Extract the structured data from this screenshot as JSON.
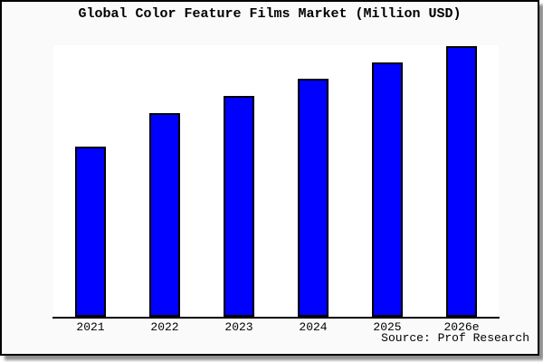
{
  "chart": {
    "title": "Global Color Feature Films Market (Million USD)",
    "source": "Source: Prof Research"
  },
  "chart_data": {
    "type": "bar",
    "title": "Global Color Feature Films Market (Million USD)",
    "categories": [
      "2021",
      "2022",
      "2023",
      "2024",
      "2025",
      "2026e"
    ],
    "values_relative_pct_of_max": [
      63,
      75,
      81,
      88,
      94,
      100
    ],
    "values_pct_of_plot_height": [
      62.7,
      75.0,
      81.3,
      87.7,
      93.7,
      99.7
    ],
    "value_axis_note": "No y-axis ticks, gridlines or data labels are shown; values are relative bar heights read from pixels, unit Million USD",
    "xlabel": "",
    "ylabel": "",
    "grid": false,
    "legend": "none",
    "source": "Source: Prof Research",
    "colors": {
      "bar_fill": "#0000FE",
      "bar_border": "#000000",
      "axis": "#000000",
      "plot_bg": "#FFFFFF",
      "canvas_bg": "#FAFAFA",
      "frame_border": "#000000",
      "shadow": "#8F8F8F"
    }
  }
}
